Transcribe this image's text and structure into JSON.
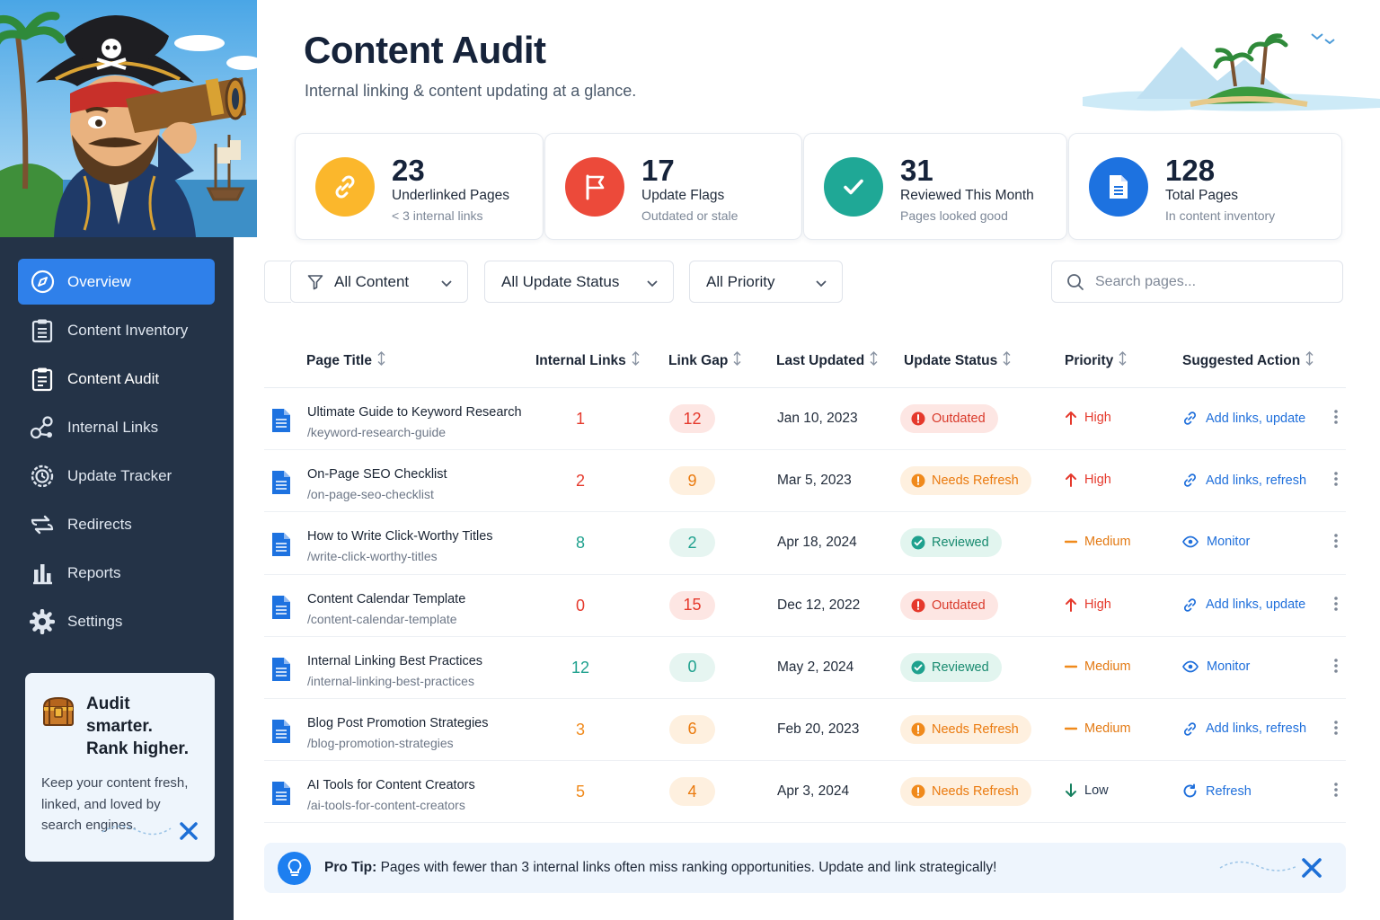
{
  "sidebar": {
    "nav": [
      {
        "label": "Overview",
        "icon": "compass-icon",
        "active": true
      },
      {
        "label": "Content Inventory",
        "icon": "clipboard-list-icon"
      },
      {
        "label": "Content Audit",
        "icon": "clipboard-check-icon"
      },
      {
        "label": "Internal Links",
        "icon": "link-nodes-icon"
      },
      {
        "label": "Update Tracker",
        "icon": "refresh-gear-icon"
      },
      {
        "label": "Redirects",
        "icon": "redirect-arrows-icon"
      },
      {
        "label": "Reports",
        "icon": "bar-chart-icon"
      },
      {
        "label": "Settings",
        "icon": "gear-icon"
      }
    ],
    "promo": {
      "title_line1": "Audit smarter.",
      "title_line2": "Rank higher.",
      "body": "Keep your content fresh, linked, and loved by search engines."
    }
  },
  "header": {
    "title": "Content Audit",
    "subtitle": "Internal linking & content updating at a glance."
  },
  "stats": [
    {
      "value": "23",
      "label": "Underlinked Pages",
      "sub": "< 3 internal links",
      "icon": "link-icon",
      "color": "#fbb72c"
    },
    {
      "value": "17",
      "label": "Update Flags",
      "sub": "Outdated or stale",
      "icon": "flag-icon",
      "color": "#ec4a3a"
    },
    {
      "value": "31",
      "label": "Reviewed This Month",
      "sub": "Pages looked good",
      "icon": "check-icon",
      "color": "#1fa896"
    },
    {
      "value": "128",
      "label": "Total Pages",
      "sub": "In content inventory",
      "icon": "document-icon",
      "color": "#1d72e0"
    }
  ],
  "filters": {
    "content": "All Content",
    "update_status": "All Update Status",
    "priority": "All Priority",
    "search_placeholder": "Search pages..."
  },
  "table": {
    "columns": [
      "Page Title",
      "Internal Links",
      "Link Gap",
      "Last Updated",
      "Update Status",
      "Priority",
      "Suggested Action"
    ],
    "rows": [
      {
        "title": "Ultimate Guide to Keyword Research",
        "slug": "/keyword-research-guide",
        "links": "1",
        "gap": "12",
        "updated": "Jan 10, 2023",
        "status": "Outdated",
        "priority": "High",
        "action": "Add links, update"
      },
      {
        "title": "On-Page SEO Checklist",
        "slug": "/on-page-seo-checklist",
        "links": "2",
        "gap": "9",
        "updated": "Mar 5, 2023",
        "status": "Needs Refresh",
        "priority": "High",
        "action": "Add links, refresh"
      },
      {
        "title": "How to Write Click-Worthy Titles",
        "slug": "/write-click-worthy-titles",
        "links": "8",
        "gap": "2",
        "updated": "Apr 18, 2024",
        "status": "Reviewed",
        "priority": "Medium",
        "action": "Monitor"
      },
      {
        "title": "Content Calendar Template",
        "slug": "/content-calendar-template",
        "links": "0",
        "gap": "15",
        "updated": "Dec 12, 2022",
        "status": "Outdated",
        "priority": "High",
        "action": "Add links, update"
      },
      {
        "title": "Internal Linking Best Practices",
        "slug": "/internal-linking-best-practices",
        "links": "12",
        "gap": "0",
        "updated": "May 2, 2024",
        "status": "Reviewed",
        "priority": "Medium",
        "action": "Monitor"
      },
      {
        "title": "Blog Post Promotion Strategies",
        "slug": "/blog-promotion-strategies",
        "links": "3",
        "gap": "6",
        "updated": "Feb 20, 2023",
        "status": "Needs Refresh",
        "priority": "Medium",
        "action": "Add links, refresh"
      },
      {
        "title": "AI Tools for Content Creators",
        "slug": "/ai-tools-for-content-creators",
        "links": "5",
        "gap": "4",
        "updated": "Apr 3, 2024",
        "status": "Needs Refresh",
        "priority": "Low",
        "action": "Refresh"
      }
    ]
  },
  "tip": {
    "label": "Pro Tip:",
    "text": "Pages with fewer than 3 internal links often miss ranking opportunities. Update and link strategically!"
  },
  "colors": {
    "primary": "#2f80ea",
    "sidebar": "#243347",
    "red": "#e5392c",
    "orange": "#f08a1c",
    "teal": "#1fa18e"
  }
}
